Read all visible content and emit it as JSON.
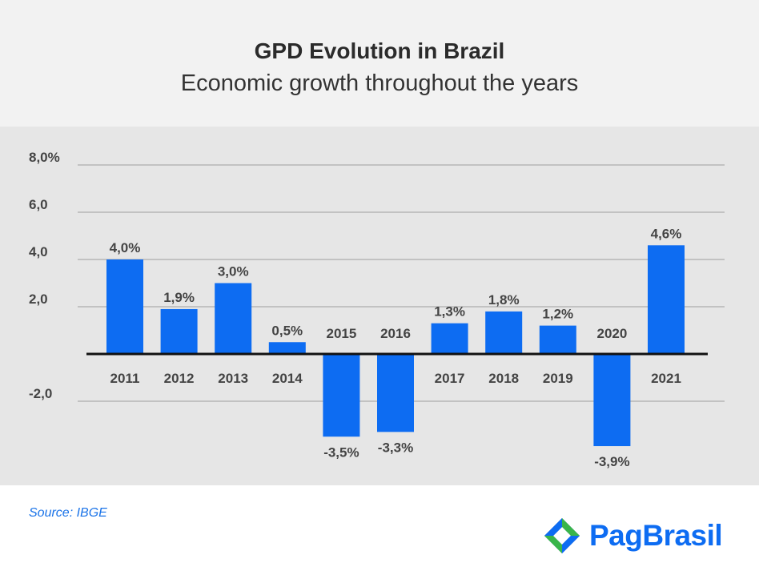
{
  "title": "GPD Evolution in Brazil",
  "subtitle": "Economic growth throughout the years",
  "source": "Source: IBGE",
  "brand": "PagBrasil",
  "colors": {
    "bar": "#0d6cf2",
    "grid": "#9e9e9e",
    "axis": "#111111",
    "text": "#444444"
  },
  "chart_data": {
    "type": "bar",
    "title": "GPD Evolution in Brazil",
    "subtitle": "Economic growth throughout the years",
    "xlabel": "",
    "ylabel": "",
    "categories": [
      "2011",
      "2012",
      "2013",
      "2014",
      "2015",
      "2016",
      "2017",
      "2018",
      "2019",
      "2020",
      "2021"
    ],
    "values": [
      4.0,
      1.9,
      3.0,
      0.5,
      -3.5,
      -3.3,
      1.3,
      1.8,
      1.2,
      -3.9,
      4.6
    ],
    "value_labels": [
      "4,0%",
      "1,9%",
      "3,0%",
      "0,5%",
      "-3,5%",
      "-3,3%",
      "1,3%",
      "1,8%",
      "1,2%",
      "-3,9%",
      "4,6%"
    ],
    "y_ticks": [
      {
        "value": 8,
        "label": "8,0%"
      },
      {
        "value": 6,
        "label": "6,0"
      },
      {
        "value": 4,
        "label": "4,0"
      },
      {
        "value": 2,
        "label": "2,0"
      },
      {
        "value": -2,
        "label": "-2,0"
      }
    ],
    "ylim": [
      -4.5,
      8
    ],
    "grid": true,
    "legend": "none"
  }
}
